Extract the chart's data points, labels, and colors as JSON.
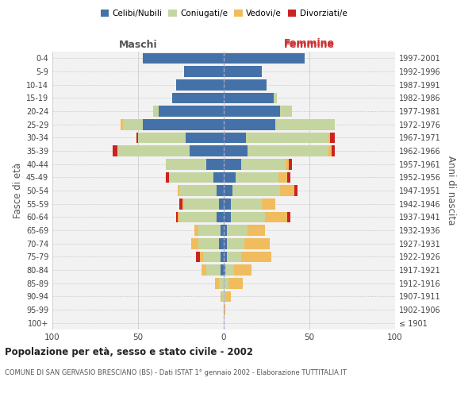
{
  "age_groups": [
    "100+",
    "95-99",
    "90-94",
    "85-89",
    "80-84",
    "75-79",
    "70-74",
    "65-69",
    "60-64",
    "55-59",
    "50-54",
    "45-49",
    "40-44",
    "35-39",
    "30-34",
    "25-29",
    "20-24",
    "15-19",
    "10-14",
    "5-9",
    "0-4"
  ],
  "birth_years": [
    "≤ 1901",
    "1902-1906",
    "1907-1911",
    "1912-1916",
    "1917-1921",
    "1922-1926",
    "1927-1931",
    "1932-1936",
    "1937-1941",
    "1942-1946",
    "1947-1951",
    "1952-1956",
    "1957-1961",
    "1962-1966",
    "1967-1971",
    "1972-1976",
    "1977-1981",
    "1982-1986",
    "1987-1991",
    "1992-1996",
    "1997-2001"
  ],
  "male": {
    "celibi": [
      0,
      0,
      0,
      0,
      2,
      2,
      3,
      2,
      4,
      3,
      4,
      6,
      10,
      20,
      22,
      47,
      38,
      30,
      28,
      23,
      47
    ],
    "coniugati": [
      0,
      0,
      1,
      3,
      8,
      10,
      12,
      13,
      22,
      20,
      22,
      26,
      24,
      42,
      28,
      12,
      3,
      0,
      0,
      0,
      0
    ],
    "vedovi": [
      0,
      0,
      1,
      2,
      3,
      2,
      4,
      2,
      1,
      1,
      1,
      0,
      0,
      0,
      0,
      1,
      0,
      0,
      0,
      0,
      0
    ],
    "divorziati": [
      0,
      0,
      0,
      0,
      0,
      2,
      0,
      0,
      1,
      2,
      0,
      2,
      0,
      3,
      1,
      0,
      0,
      0,
      0,
      0,
      0
    ]
  },
  "female": {
    "nubili": [
      0,
      0,
      0,
      0,
      1,
      2,
      2,
      2,
      4,
      4,
      5,
      7,
      10,
      14,
      13,
      30,
      33,
      29,
      25,
      22,
      47
    ],
    "coniugate": [
      0,
      0,
      1,
      3,
      5,
      8,
      10,
      12,
      20,
      18,
      28,
      25,
      26,
      47,
      48,
      35,
      7,
      2,
      0,
      0,
      0
    ],
    "vedove": [
      0,
      1,
      3,
      8,
      10,
      18,
      15,
      10,
      13,
      8,
      8,
      5,
      2,
      2,
      1,
      0,
      0,
      0,
      0,
      0,
      0
    ],
    "divorziate": [
      0,
      0,
      0,
      0,
      0,
      0,
      0,
      0,
      2,
      0,
      2,
      2,
      2,
      2,
      3,
      0,
      0,
      0,
      0,
      0,
      0
    ]
  },
  "colors": {
    "celibi": "#4472a8",
    "coniugati": "#c5d5a0",
    "vedovi": "#f0bc5e",
    "divorziati": "#cc2222"
  },
  "title": "Popolazione per età, sesso e stato civile - 2002",
  "subtitle": "COMUNE DI SAN GERVASIO BRESCIANO (BS) - Dati ISTAT 1° gennaio 2002 - Elaborazione TUTTITALIA.IT",
  "ylabel_left": "Fasce di età",
  "ylabel_right": "Anni di nascita",
  "xlabel_left": "Maschi",
  "xlabel_right": "Femmine",
  "xlim": 100,
  "bg_color": "#f2f2f2",
  "grid_color": "#cccccc"
}
